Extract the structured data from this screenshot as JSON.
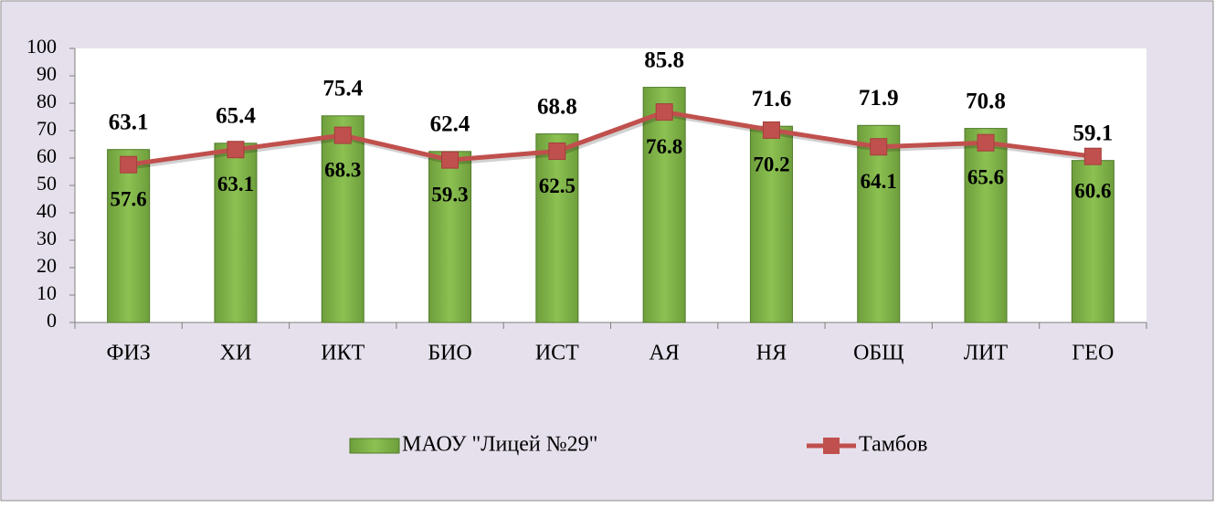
{
  "chart_data": {
    "type": "bar",
    "categories": [
      "ФИЗ",
      "ХИ",
      "ИКТ",
      "БИО",
      "ИСТ",
      "АЯ",
      "НЯ",
      "ОБЩ",
      "ЛИТ",
      "ГЕО"
    ],
    "series": [
      {
        "name": "МАОУ \"Лицей №29\"",
        "type": "bar",
        "color": "#7fb148",
        "values": [
          63.1,
          65.4,
          75.4,
          62.4,
          68.8,
          85.8,
          71.6,
          71.9,
          70.8,
          59.1
        ]
      },
      {
        "name": "Тамбов",
        "type": "line",
        "color": "#c0504d",
        "values": [
          57.6,
          63.1,
          68.3,
          59.3,
          62.5,
          76.8,
          70.2,
          64.1,
          65.6,
          60.6
        ]
      }
    ],
    "ylim": [
      0,
      100
    ],
    "yticks": [
      0,
      10,
      20,
      30,
      40,
      50,
      60,
      70,
      80,
      90,
      100
    ],
    "legend": "bottom"
  }
}
